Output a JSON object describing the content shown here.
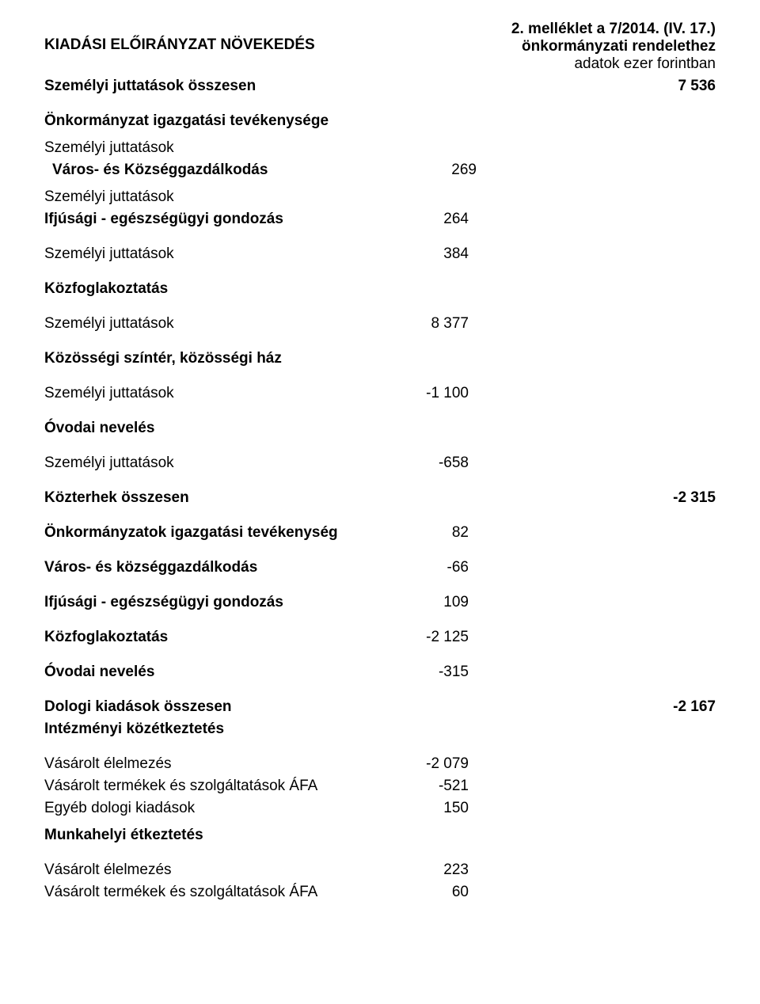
{
  "header": {
    "left": "KIADÁSI ELŐIRÁNYZAT NÖVEKEDÉS",
    "right_line1": "2. melléklet a 7/2014. (IV. 17.)",
    "right_line2": "önkormányzati rendelethez",
    "right_line3": "adatok ezer forintban"
  },
  "rows": [
    {
      "label": "Személyi juttatások összesen",
      "mid": "",
      "right": "7 536",
      "bold": true,
      "gap": "small"
    },
    {
      "label": "Önkormányzat igazgatási tevékenysége",
      "mid": "",
      "right": "",
      "bold": true,
      "gap": "section"
    },
    {
      "label": "Személyi juttatások",
      "mid": "",
      "right": "",
      "bold": false,
      "gap": "med"
    },
    {
      "label": "Város- és Községgazdálkodás",
      "mid": "269",
      "right": "",
      "bold": true,
      "gap": "small",
      "indent": true
    },
    {
      "label": "Személyi juttatások",
      "mid": "",
      "right": "",
      "bold": false,
      "gap": "med"
    },
    {
      "label": "Ifjúsági - egészségügyi gondozás",
      "mid": "264",
      "right": "",
      "bold": true,
      "gap": "small"
    },
    {
      "label": "Személyi juttatások",
      "mid": "384",
      "right": "",
      "bold": false,
      "gap": "section"
    },
    {
      "label": "Közfoglakoztatás",
      "mid": "",
      "right": "",
      "bold": true,
      "gap": "section"
    },
    {
      "label": "Személyi juttatások",
      "mid": "8 377",
      "right": "",
      "bold": false,
      "gap": "section"
    },
    {
      "label": "Közösségi színtér, közösségi ház",
      "mid": "",
      "right": "",
      "bold": true,
      "gap": "section"
    },
    {
      "label": "Személyi juttatások",
      "mid": "-1 100",
      "right": "",
      "bold": false,
      "gap": "section"
    },
    {
      "label": "Óvodai nevelés",
      "mid": "",
      "right": "",
      "bold": true,
      "gap": "section"
    },
    {
      "label": "Személyi juttatások",
      "mid": "-658",
      "right": "",
      "bold": false,
      "gap": "section"
    },
    {
      "label": "Közterhek összesen",
      "mid": "",
      "right": "-2 315",
      "bold": true,
      "gap": "section"
    },
    {
      "label": "Önkormányzatok igazgatási tevékenység",
      "mid": "82",
      "right": "",
      "bold": true,
      "gap": "section"
    },
    {
      "label": "Város- és községgazdálkodás",
      "mid": "-66",
      "right": "",
      "bold": true,
      "gap": "section"
    },
    {
      "label": "Ifjúsági - egészségügyi gondozás",
      "mid": "109",
      "right": "",
      "bold": true,
      "gap": "section"
    },
    {
      "label": "Közfoglakoztatás",
      "mid": "-2 125",
      "right": "",
      "bold": true,
      "gap": "section"
    },
    {
      "label": "Óvodai nevelés",
      "mid": "-315",
      "right": "",
      "bold": true,
      "gap": "section"
    },
    {
      "label": "Dologi kiadások összesen",
      "mid": "",
      "right": "-2 167",
      "bold": true,
      "gap": "section"
    },
    {
      "label": "Intézményi közétkeztetés",
      "mid": "",
      "right": "",
      "bold": true,
      "gap": "small"
    },
    {
      "label": "Vásárolt élelmezés",
      "mid": "-2 079",
      "right": "",
      "bold": false,
      "gap": "section"
    },
    {
      "label": "Vásárolt termékek és szolgáltatások ÁFA",
      "mid": "-521",
      "right": "",
      "bold": false,
      "gap": "small"
    },
    {
      "label": "Egyéb dologi kiadások",
      "mid": "150",
      "right": "",
      "bold": false,
      "gap": "small"
    },
    {
      "label": "Munkahelyi étkeztetés",
      "mid": "",
      "right": "",
      "bold": true,
      "gap": "med"
    },
    {
      "label": "Vásárolt élelmezés",
      "mid": "223",
      "right": "",
      "bold": false,
      "gap": "section"
    },
    {
      "label": "Vásárolt termékek és szolgáltatások ÁFA",
      "mid": "60",
      "right": "",
      "bold": false,
      "gap": "small"
    }
  ]
}
